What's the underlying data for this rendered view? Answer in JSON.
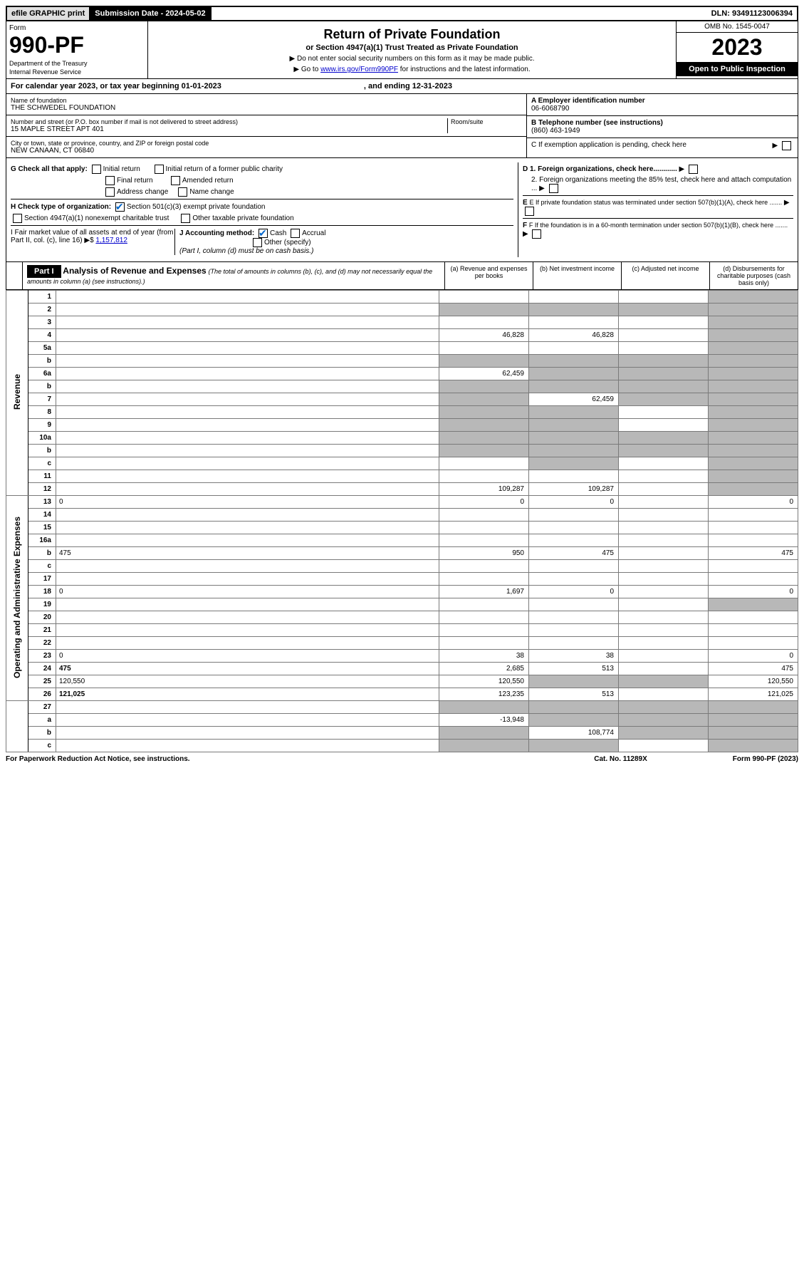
{
  "topbar": {
    "efile_label": "efile GRAPHIC print",
    "submission_label": "Submission Date - 2024-05-02",
    "dln": "DLN: 93491123006394"
  },
  "header": {
    "form_label": "Form",
    "form_number": "990-PF",
    "dept1": "Department of the Treasury",
    "dept2": "Internal Revenue Service",
    "title": "Return of Private Foundation",
    "subtitle": "or Section 4947(a)(1) Trust Treated as Private Foundation",
    "instr1": "▶ Do not enter social security numbers on this form as it may be made public.",
    "instr2": "▶ Go to ",
    "instr2_link": "www.irs.gov/Form990PF",
    "instr2_suffix": " for instructions and the latest information.",
    "omb": "OMB No. 1545-0047",
    "year": "2023",
    "open_public": "Open to Public Inspection"
  },
  "cal_year": {
    "prefix": "For calendar year 2023, or tax year beginning 01-01-2023",
    "ending": ", and ending 12-31-2023"
  },
  "info": {
    "name_label": "Name of foundation",
    "name": "THE SCHWEDEL FOUNDATION",
    "addr_label": "Number and street (or P.O. box number if mail is not delivered to street address)",
    "addr": "15 MAPLE STREET APT 401",
    "room_label": "Room/suite",
    "city_label": "City or town, state or province, country, and ZIP or foreign postal code",
    "city": "NEW CANAAN, CT  06840",
    "ein_label": "A Employer identification number",
    "ein": "06-6068790",
    "phone_label": "B Telephone number (see instructions)",
    "phone": "(860) 463-1949",
    "c_label": "C If exemption application is pending, check here",
    "d1": "D 1. Foreign organizations, check here............",
    "d2": "2. Foreign organizations meeting the 85% test, check here and attach computation ...",
    "e_label": "E If private foundation status was terminated under section 507(b)(1)(A), check here .......",
    "f_label": "F If the foundation is in a 60-month termination under section 507(b)(1)(B), check here ......."
  },
  "g": {
    "label": "G Check all that apply:",
    "opts": [
      "Initial return",
      "Final return",
      "Address change",
      "Initial return of a former public charity",
      "Amended return",
      "Name change"
    ]
  },
  "h": {
    "label": "H Check type of organization:",
    "opt1": "Section 501(c)(3) exempt private foundation",
    "opt2": "Section 4947(a)(1) nonexempt charitable trust",
    "opt3": "Other taxable private foundation"
  },
  "i": {
    "label": "I Fair market value of all assets at end of year (from Part II, col. (c), line 16)",
    "value": "1,157,812"
  },
  "j": {
    "label": "J Accounting method:",
    "cash": "Cash",
    "accrual": "Accrual",
    "other": "Other (specify)",
    "note": "(Part I, column (d) must be on cash basis.)"
  },
  "part1": {
    "label": "Part I",
    "title": "Analysis of Revenue and Expenses",
    "note": "(The total of amounts in columns (b), (c), and (d) may not necessarily equal the amounts in column (a) (see instructions).)",
    "cols": {
      "a": "(a) Revenue and expenses per books",
      "b": "(b) Net investment income",
      "c": "(c) Adjusted net income",
      "d": "(d) Disbursements for charitable purposes (cash basis only)"
    }
  },
  "sections": {
    "revenue": "Revenue",
    "expenses": "Operating and Administrative Expenses"
  },
  "rows": [
    {
      "n": "1",
      "d": "",
      "a": "",
      "b": "",
      "c": "",
      "greyD": true
    },
    {
      "n": "2",
      "d": "",
      "a": "",
      "b": "",
      "c": "",
      "greyA": true,
      "greyB": true,
      "greyC": true,
      "greyD": true,
      "bold": false
    },
    {
      "n": "3",
      "d": "",
      "a": "",
      "b": "",
      "c": "",
      "greyD": true
    },
    {
      "n": "4",
      "d": "",
      "a": "46,828",
      "b": "46,828",
      "c": "",
      "greyD": true
    },
    {
      "n": "5a",
      "d": "",
      "a": "",
      "b": "",
      "c": "",
      "greyD": true
    },
    {
      "n": "b",
      "d": "",
      "a": "",
      "b": "",
      "c": "",
      "greyA": true,
      "greyB": true,
      "greyC": true,
      "greyD": true
    },
    {
      "n": "6a",
      "d": "",
      "a": "62,459",
      "b": "",
      "c": "",
      "greyB": true,
      "greyC": true,
      "greyD": true
    },
    {
      "n": "b",
      "d": "",
      "a": "",
      "b": "",
      "c": "",
      "greyA": true,
      "greyB": true,
      "greyC": true,
      "greyD": true
    },
    {
      "n": "7",
      "d": "",
      "a": "",
      "b": "62,459",
      "c": "",
      "greyA": true,
      "greyC": true,
      "greyD": true
    },
    {
      "n": "8",
      "d": "",
      "a": "",
      "b": "",
      "c": "",
      "greyA": true,
      "greyB": true,
      "greyD": true
    },
    {
      "n": "9",
      "d": "",
      "a": "",
      "b": "",
      "c": "",
      "greyA": true,
      "greyB": true,
      "greyD": true
    },
    {
      "n": "10a",
      "d": "",
      "a": "",
      "b": "",
      "c": "",
      "greyA": true,
      "greyB": true,
      "greyC": true,
      "greyD": true
    },
    {
      "n": "b",
      "d": "",
      "a": "",
      "b": "",
      "c": "",
      "greyA": true,
      "greyB": true,
      "greyC": true,
      "greyD": true
    },
    {
      "n": "c",
      "d": "",
      "a": "",
      "b": "",
      "c": "",
      "greyB": true,
      "greyD": true
    },
    {
      "n": "11",
      "d": "",
      "a": "",
      "b": "",
      "c": "",
      "greyD": true
    },
    {
      "n": "12",
      "d": "",
      "a": "109,287",
      "b": "109,287",
      "c": "",
      "greyD": true,
      "bold": true
    }
  ],
  "exp_rows": [
    {
      "n": "13",
      "d": "0",
      "a": "0",
      "b": "0",
      "c": ""
    },
    {
      "n": "14",
      "d": "",
      "a": "",
      "b": "",
      "c": ""
    },
    {
      "n": "15",
      "d": "",
      "a": "",
      "b": "",
      "c": ""
    },
    {
      "n": "16a",
      "d": "",
      "a": "",
      "b": "",
      "c": ""
    },
    {
      "n": "b",
      "d": "475",
      "a": "950",
      "b": "475",
      "c": ""
    },
    {
      "n": "c",
      "d": "",
      "a": "",
      "b": "",
      "c": ""
    },
    {
      "n": "17",
      "d": "",
      "a": "",
      "b": "",
      "c": ""
    },
    {
      "n": "18",
      "d": "0",
      "a": "1,697",
      "b": "0",
      "c": ""
    },
    {
      "n": "19",
      "d": "",
      "a": "",
      "b": "",
      "c": "",
      "greyD": true
    },
    {
      "n": "20",
      "d": "",
      "a": "",
      "b": "",
      "c": ""
    },
    {
      "n": "21",
      "d": "",
      "a": "",
      "b": "",
      "c": ""
    },
    {
      "n": "22",
      "d": "",
      "a": "",
      "b": "",
      "c": ""
    },
    {
      "n": "23",
      "d": "0",
      "a": "38",
      "b": "38",
      "c": ""
    },
    {
      "n": "24",
      "d": "475",
      "a": "2,685",
      "b": "513",
      "c": "",
      "bold": true
    },
    {
      "n": "25",
      "d": "120,550",
      "a": "120,550",
      "b": "",
      "c": "",
      "greyB": true,
      "greyC": true
    },
    {
      "n": "26",
      "d": "121,025",
      "a": "123,235",
      "b": "513",
      "c": "",
      "bold": true
    }
  ],
  "bottom_rows": [
    {
      "n": "27",
      "d": "",
      "a": "",
      "b": "",
      "c": "",
      "greyA": true,
      "greyB": true,
      "greyC": true,
      "greyD": true
    },
    {
      "n": "a",
      "d": "",
      "a": "-13,948",
      "b": "",
      "c": "",
      "greyB": true,
      "greyC": true,
      "greyD": true,
      "bold": true
    },
    {
      "n": "b",
      "d": "",
      "a": "",
      "b": "108,774",
      "c": "",
      "greyA": true,
      "greyC": true,
      "greyD": true,
      "bold": true
    },
    {
      "n": "c",
      "d": "",
      "a": "",
      "b": "",
      "c": "",
      "greyA": true,
      "greyB": true,
      "greyD": true,
      "bold": true
    }
  ],
  "footer": {
    "left": "For Paperwork Reduction Act Notice, see instructions.",
    "cat": "Cat. No. 11289X",
    "form": "Form 990-PF (2023)"
  }
}
